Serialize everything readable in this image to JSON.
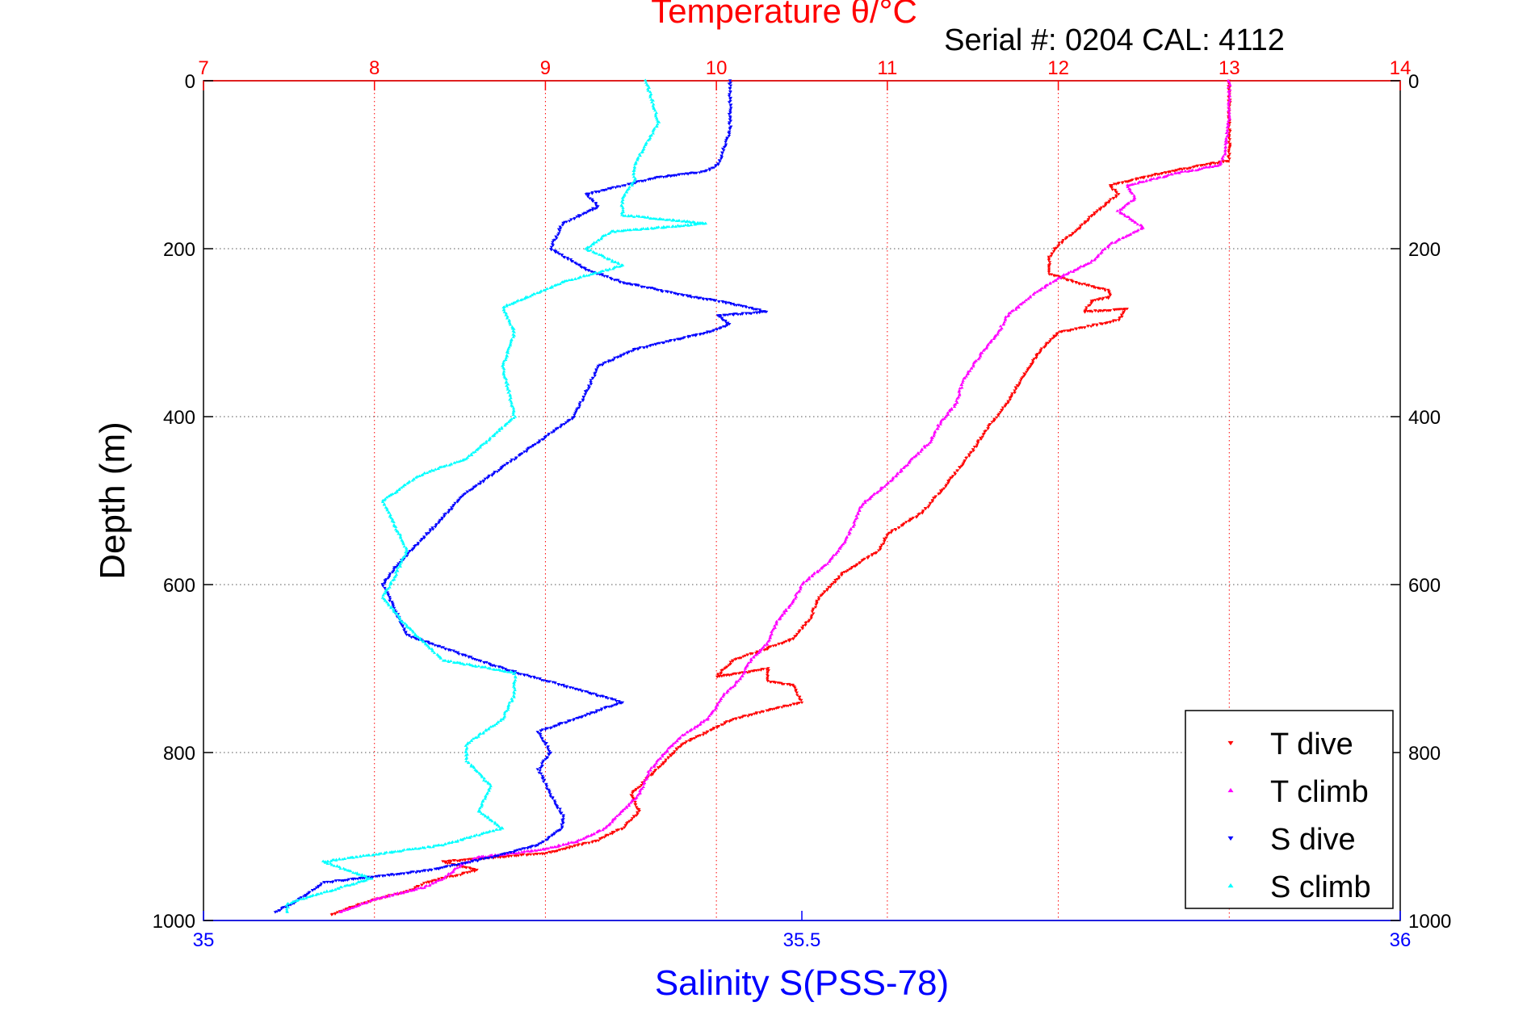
{
  "chart_data": {
    "type": "scatter",
    "title": "Temperature θ/°C",
    "subtitle": "Serial #: 0204  CAL: 4112",
    "ylabel": "Depth (m)",
    "xlabel_bottom": "Salinity S(PSS-78)",
    "grid": true,
    "legend_position": "bottom-right",
    "y_axis": {
      "ylim": [
        0,
        1000
      ],
      "reversed": true,
      "ticks": [
        "0",
        "200",
        "400",
        "600",
        "800",
        "1000"
      ]
    },
    "temperature_axis": {
      "position": "top",
      "xlim": [
        7,
        14
      ],
      "ticks": [
        "7",
        "8",
        "9",
        "10",
        "11",
        "12",
        "13",
        "14"
      ],
      "color": "#ff0000"
    },
    "salinity_axis": {
      "position": "bottom",
      "xlim": [
        35,
        36
      ],
      "ticks": [
        "35",
        "35.5",
        "36"
      ],
      "color": "#0000ff"
    },
    "series": [
      {
        "name": "T dive",
        "axis": "temperature",
        "color": "#ff0000",
        "marker": "triangle-down",
        "points": [
          [
            13.0,
            0
          ],
          [
            13.0,
            30
          ],
          [
            13.0,
            60
          ],
          [
            13.0,
            95
          ],
          [
            12.6,
            110
          ],
          [
            12.3,
            125
          ],
          [
            12.35,
            135
          ],
          [
            12.2,
            160
          ],
          [
            12.1,
            180
          ],
          [
            12.0,
            195
          ],
          [
            11.95,
            210
          ],
          [
            11.95,
            230
          ],
          [
            12.1,
            240
          ],
          [
            12.3,
            250
          ],
          [
            12.3,
            258
          ],
          [
            12.2,
            262
          ],
          [
            12.15,
            275
          ],
          [
            12.4,
            272
          ],
          [
            12.35,
            285
          ],
          [
            12.0,
            300
          ],
          [
            11.9,
            320
          ],
          [
            11.8,
            350
          ],
          [
            11.7,
            385
          ],
          [
            11.6,
            410
          ],
          [
            11.5,
            440
          ],
          [
            11.35,
            480
          ],
          [
            11.2,
            515
          ],
          [
            11.0,
            540
          ],
          [
            10.95,
            560
          ],
          [
            10.75,
            585
          ],
          [
            10.6,
            615
          ],
          [
            10.55,
            640
          ],
          [
            10.45,
            665
          ],
          [
            10.1,
            690
          ],
          [
            10.0,
            710
          ],
          [
            10.3,
            700
          ],
          [
            10.3,
            715
          ],
          [
            10.45,
            720
          ],
          [
            10.5,
            740
          ],
          [
            10.1,
            760
          ],
          [
            10.0,
            770
          ],
          [
            9.8,
            790
          ],
          [
            9.65,
            820
          ],
          [
            9.5,
            850
          ],
          [
            9.55,
            870
          ],
          [
            9.45,
            890
          ],
          [
            9.3,
            905
          ],
          [
            9.0,
            920
          ],
          [
            8.4,
            930
          ],
          [
            8.6,
            940
          ],
          [
            8.3,
            955
          ],
          [
            8.2,
            965
          ],
          [
            8.0,
            975
          ],
          [
            7.85,
            985
          ],
          [
            7.75,
            993
          ]
        ]
      },
      {
        "name": "T climb",
        "axis": "temperature",
        "color": "#ff00ff",
        "marker": "triangle-up",
        "points": [
          [
            13.0,
            0
          ],
          [
            13.0,
            40
          ],
          [
            12.98,
            80
          ],
          [
            12.95,
            100
          ],
          [
            12.7,
            110
          ],
          [
            12.4,
            125
          ],
          [
            12.45,
            140
          ],
          [
            12.35,
            155
          ],
          [
            12.5,
            175
          ],
          [
            12.3,
            195
          ],
          [
            12.2,
            215
          ],
          [
            12.0,
            235
          ],
          [
            11.85,
            255
          ],
          [
            11.7,
            280
          ],
          [
            11.65,
            300
          ],
          [
            11.55,
            325
          ],
          [
            11.45,
            355
          ],
          [
            11.4,
            385
          ],
          [
            11.3,
            410
          ],
          [
            11.25,
            430
          ],
          [
            11.1,
            460
          ],
          [
            11.0,
            480
          ],
          [
            10.85,
            505
          ],
          [
            10.8,
            530
          ],
          [
            10.75,
            550
          ],
          [
            10.65,
            575
          ],
          [
            10.5,
            600
          ],
          [
            10.45,
            620
          ],
          [
            10.35,
            645
          ],
          [
            10.3,
            670
          ],
          [
            10.2,
            690
          ],
          [
            10.15,
            710
          ],
          [
            10.05,
            730
          ],
          [
            9.95,
            760
          ],
          [
            9.8,
            780
          ],
          [
            9.7,
            800
          ],
          [
            9.6,
            825
          ],
          [
            9.55,
            850
          ],
          [
            9.45,
            870
          ],
          [
            9.35,
            890
          ],
          [
            9.2,
            905
          ],
          [
            9.0,
            915
          ],
          [
            8.6,
            925
          ],
          [
            8.5,
            935
          ],
          [
            8.4,
            950
          ],
          [
            8.3,
            960
          ],
          [
            8.0,
            975
          ],
          [
            7.8,
            990
          ]
        ]
      },
      {
        "name": "S dive",
        "axis": "salinity",
        "color": "#0000ff",
        "marker": "triangle-down",
        "points": [
          [
            35.44,
            0
          ],
          [
            35.44,
            30
          ],
          [
            35.44,
            60
          ],
          [
            35.43,
            100
          ],
          [
            35.42,
            108
          ],
          [
            35.38,
            115
          ],
          [
            35.35,
            125
          ],
          [
            35.32,
            135
          ],
          [
            35.33,
            150
          ],
          [
            35.3,
            170
          ],
          [
            35.29,
            200
          ],
          [
            35.32,
            225
          ],
          [
            35.35,
            240
          ],
          [
            35.4,
            255
          ],
          [
            35.44,
            265
          ],
          [
            35.47,
            275
          ],
          [
            35.43,
            280
          ],
          [
            35.44,
            290
          ],
          [
            35.42,
            300
          ],
          [
            35.36,
            320
          ],
          [
            35.33,
            340
          ],
          [
            35.32,
            370
          ],
          [
            35.31,
            400
          ],
          [
            35.28,
            430
          ],
          [
            35.25,
            460
          ],
          [
            35.22,
            490
          ],
          [
            35.2,
            520
          ],
          [
            35.18,
            550
          ],
          [
            35.16,
            580
          ],
          [
            35.15,
            600
          ],
          [
            35.16,
            630
          ],
          [
            35.17,
            660
          ],
          [
            35.25,
            700
          ],
          [
            35.3,
            720
          ],
          [
            35.35,
            740
          ],
          [
            35.31,
            760
          ],
          [
            35.28,
            775
          ],
          [
            35.29,
            800
          ],
          [
            35.28,
            820
          ],
          [
            35.29,
            850
          ],
          [
            35.3,
            875
          ],
          [
            35.3,
            890
          ],
          [
            35.28,
            910
          ],
          [
            35.24,
            925
          ],
          [
            35.19,
            940
          ],
          [
            35.1,
            955
          ],
          [
            35.08,
            975
          ],
          [
            35.06,
            990
          ]
        ]
      },
      {
        "name": "S climb",
        "axis": "salinity",
        "color": "#00ffff",
        "marker": "triangle-up",
        "points": [
          [
            35.37,
            0
          ],
          [
            35.38,
            50
          ],
          [
            35.36,
            100
          ],
          [
            35.36,
            120
          ],
          [
            35.35,
            140
          ],
          [
            35.35,
            160
          ],
          [
            35.42,
            170
          ],
          [
            35.34,
            180
          ],
          [
            35.32,
            200
          ],
          [
            35.35,
            220
          ],
          [
            35.3,
            240
          ],
          [
            35.25,
            270
          ],
          [
            35.26,
            300
          ],
          [
            35.25,
            340
          ],
          [
            35.26,
            400
          ],
          [
            35.22,
            450
          ],
          [
            35.18,
            470
          ],
          [
            35.15,
            500
          ],
          [
            35.16,
            530
          ],
          [
            35.17,
            560
          ],
          [
            35.16,
            590
          ],
          [
            35.15,
            615
          ],
          [
            35.17,
            650
          ],
          [
            35.2,
            690
          ],
          [
            35.26,
            705
          ],
          [
            35.26,
            730
          ],
          [
            35.25,
            760
          ],
          [
            35.22,
            790
          ],
          [
            35.22,
            810
          ],
          [
            35.24,
            840
          ],
          [
            35.23,
            870
          ],
          [
            35.25,
            890
          ],
          [
            35.2,
            910
          ],
          [
            35.1,
            930
          ],
          [
            35.14,
            950
          ],
          [
            35.07,
            980
          ],
          [
            35.07,
            990
          ]
        ]
      }
    ]
  }
}
